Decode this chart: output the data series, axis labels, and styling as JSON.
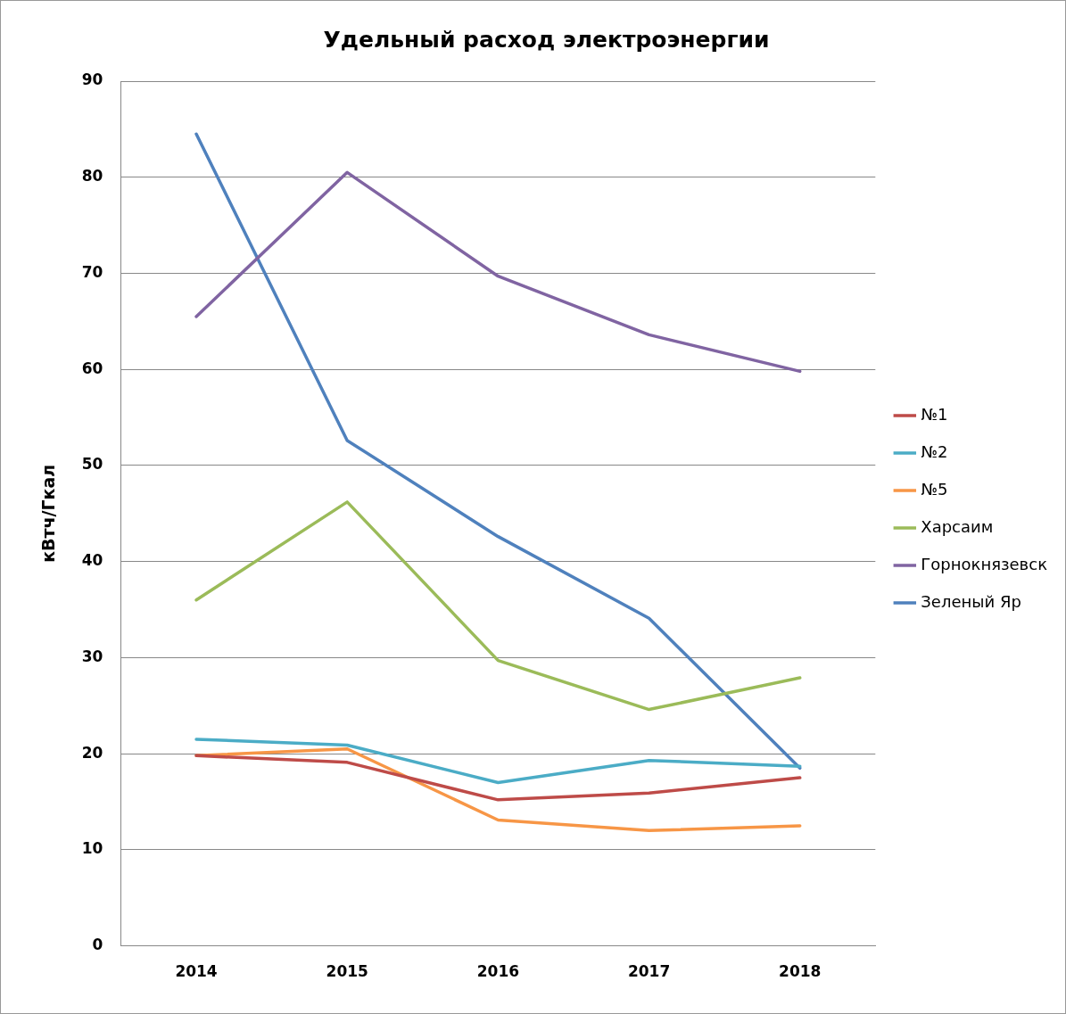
{
  "chart_data": {
    "type": "line",
    "title": "Удельный расход электроэнергии",
    "ylabel": "кВтч/Гкал",
    "categories": [
      "2014",
      "2015",
      "2016",
      "2017",
      "2018"
    ],
    "series": [
      {
        "name": "№1",
        "color": "#be4b48",
        "values": [
          19.8,
          19.1,
          15.2,
          15.9,
          17.5
        ]
      },
      {
        "name": "№2",
        "color": "#4bacc6",
        "values": [
          21.5,
          20.9,
          17.0,
          19.3,
          18.7
        ]
      },
      {
        "name": "№5",
        "color": "#f79646",
        "values": [
          19.8,
          20.5,
          13.1,
          12.0,
          12.5
        ]
      },
      {
        "name": "Харсаим",
        "color": "#9bbb59",
        "values": [
          36.0,
          46.2,
          29.7,
          24.6,
          27.9
        ]
      },
      {
        "name": "Горнокнязевск",
        "color": "#8064a2",
        "values": [
          65.5,
          80.5,
          69.7,
          63.6,
          59.8
        ]
      },
      {
        "name": "Зеленый Яр",
        "color": "#4f81bd",
        "values": [
          84.5,
          52.6,
          42.6,
          34.1,
          18.5
        ]
      }
    ],
    "ylim": [
      0,
      90
    ],
    "yticks": [
      0,
      10,
      20,
      30,
      40,
      50,
      60,
      70,
      80,
      90
    ],
    "grid": "y",
    "legend": "right",
    "marker": "none",
    "line_style": "solid"
  }
}
